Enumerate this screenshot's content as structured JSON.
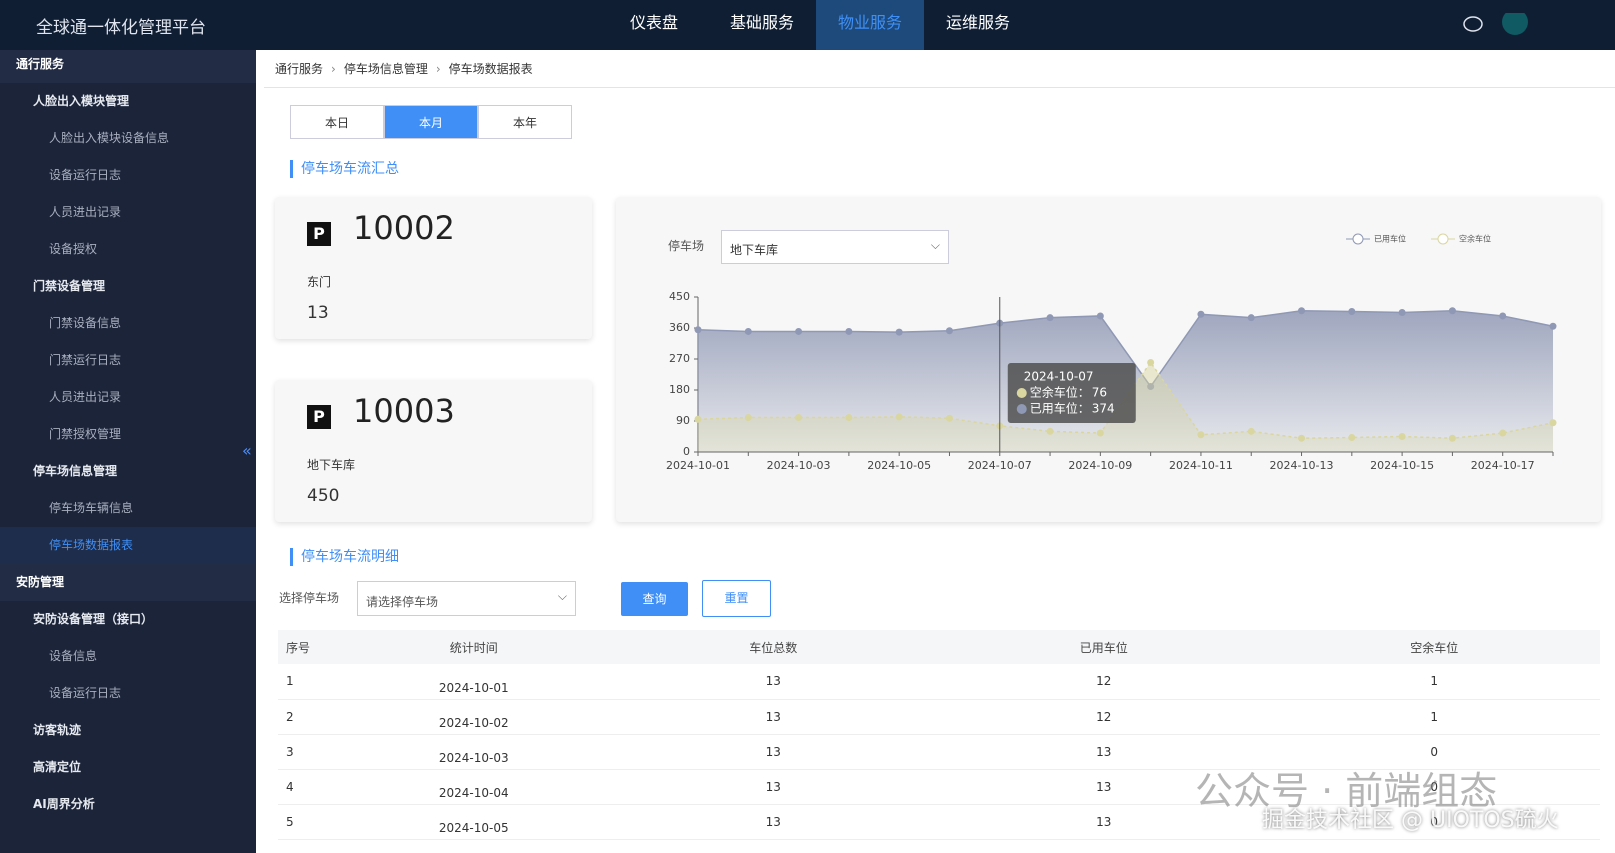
{
  "header": {
    "title": "全球通一体化管理平台",
    "nav": [
      "仪表盘",
      "基础服务",
      "物业服务",
      "运维服务"
    ],
    "active_nav": 2
  },
  "sidebar": {
    "items": [
      {
        "label": "通行服务",
        "level": 0
      },
      {
        "label": "人脸出入模块管理",
        "level": 1
      },
      {
        "label": "人脸出入模块设备信息",
        "level": 2
      },
      {
        "label": "设备运行日志",
        "level": 2
      },
      {
        "label": "人员进出记录",
        "level": 2
      },
      {
        "label": "设备授权",
        "level": 2
      },
      {
        "label": "门禁设备管理",
        "level": 1
      },
      {
        "label": "门禁设备信息",
        "level": 2
      },
      {
        "label": "门禁运行日志",
        "level": 2
      },
      {
        "label": "人员进出记录",
        "level": 2
      },
      {
        "label": "门禁授权管理",
        "level": 2
      },
      {
        "label": "停车场信息管理",
        "level": 1
      },
      {
        "label": "停车场车辆信息",
        "level": 2
      },
      {
        "label": "停车场数据报表",
        "level": 2,
        "active": true
      },
      {
        "label": "安防管理",
        "level": 0
      },
      {
        "label": "安防设备管理（接口）",
        "level": 1
      },
      {
        "label": "设备信息",
        "level": 2
      },
      {
        "label": "设备运行日志",
        "level": 2
      },
      {
        "label": "访客轨迹",
        "level": 1
      },
      {
        "label": "高清定位",
        "level": 1
      },
      {
        "label": "AI周界分析",
        "level": 1
      }
    ]
  },
  "breadcrumb": [
    "通行服务",
    "停车场信息管理",
    "停车场数据报表"
  ],
  "tabs": {
    "items": [
      "本日",
      "本月",
      "本年"
    ],
    "active": 1
  },
  "summary": {
    "title": "停车场车流汇总",
    "icon": "P",
    "cards": [
      {
        "id": "10002",
        "name": "东门",
        "value": "13"
      },
      {
        "id": "10003",
        "name": "地下车库",
        "value": "450"
      }
    ]
  },
  "chart_filter": {
    "label": "停车场",
    "selected": "地下车库"
  },
  "chart_data": {
    "type": "area",
    "categories": [
      "2024-10-01",
      null,
      "2024-10-03",
      null,
      "2024-10-05",
      null,
      "2024-10-07",
      null,
      "2024-10-09",
      null,
      "2024-10-11",
      null,
      "2024-10-13",
      null,
      "2024-10-15",
      null,
      "2024-10-17",
      null
    ],
    "series": [
      {
        "name": "已用车位",
        "color": "#8f98b4",
        "values": [
          355,
          350,
          350,
          350,
          348,
          352,
          374,
          390,
          395,
          190,
          400,
          390,
          410,
          408,
          405,
          410,
          395,
          365
        ]
      },
      {
        "name": "空余车位",
        "color": "#d9d6a0",
        "values": [
          95,
          100,
          100,
          100,
          102,
          98,
          76,
          60,
          55,
          260,
          50,
          60,
          40,
          42,
          45,
          40,
          55,
          85
        ]
      }
    ],
    "ylim": [
      0,
      450
    ],
    "yticks": [
      0,
      90,
      180,
      270,
      360,
      450
    ],
    "legend": "top-right",
    "tooltip": {
      "title": "2024-10-07",
      "index": 6,
      "items": [
        {
          "label": "空余车位：",
          "value": 76
        },
        {
          "label": "已用车位：",
          "value": 374
        }
      ]
    }
  },
  "detail": {
    "title": "停车场车流明细",
    "filter_label": "选择停车场",
    "placeholder": "请选择停车场",
    "buttons": [
      "查询",
      "重置"
    ]
  },
  "table": {
    "columns": [
      "序号",
      "统计时间",
      "车位总数",
      "已用车位",
      "空余车位"
    ],
    "rows": [
      [
        "1",
        "2024-10-01",
        "13",
        "12",
        "1"
      ],
      [
        "2",
        "2024-10-02",
        "13",
        "12",
        "1"
      ],
      [
        "3",
        "2024-10-03",
        "13",
        "13",
        "0"
      ],
      [
        "4",
        "2024-10-04",
        "13",
        "13",
        "0"
      ],
      [
        "5",
        "2024-10-05",
        "13",
        "13",
        "0"
      ]
    ]
  },
  "watermark": {
    "line1": "公众号 · 前端组态",
    "line2": "掘金技术社区 @ UIOTOS硫火"
  }
}
